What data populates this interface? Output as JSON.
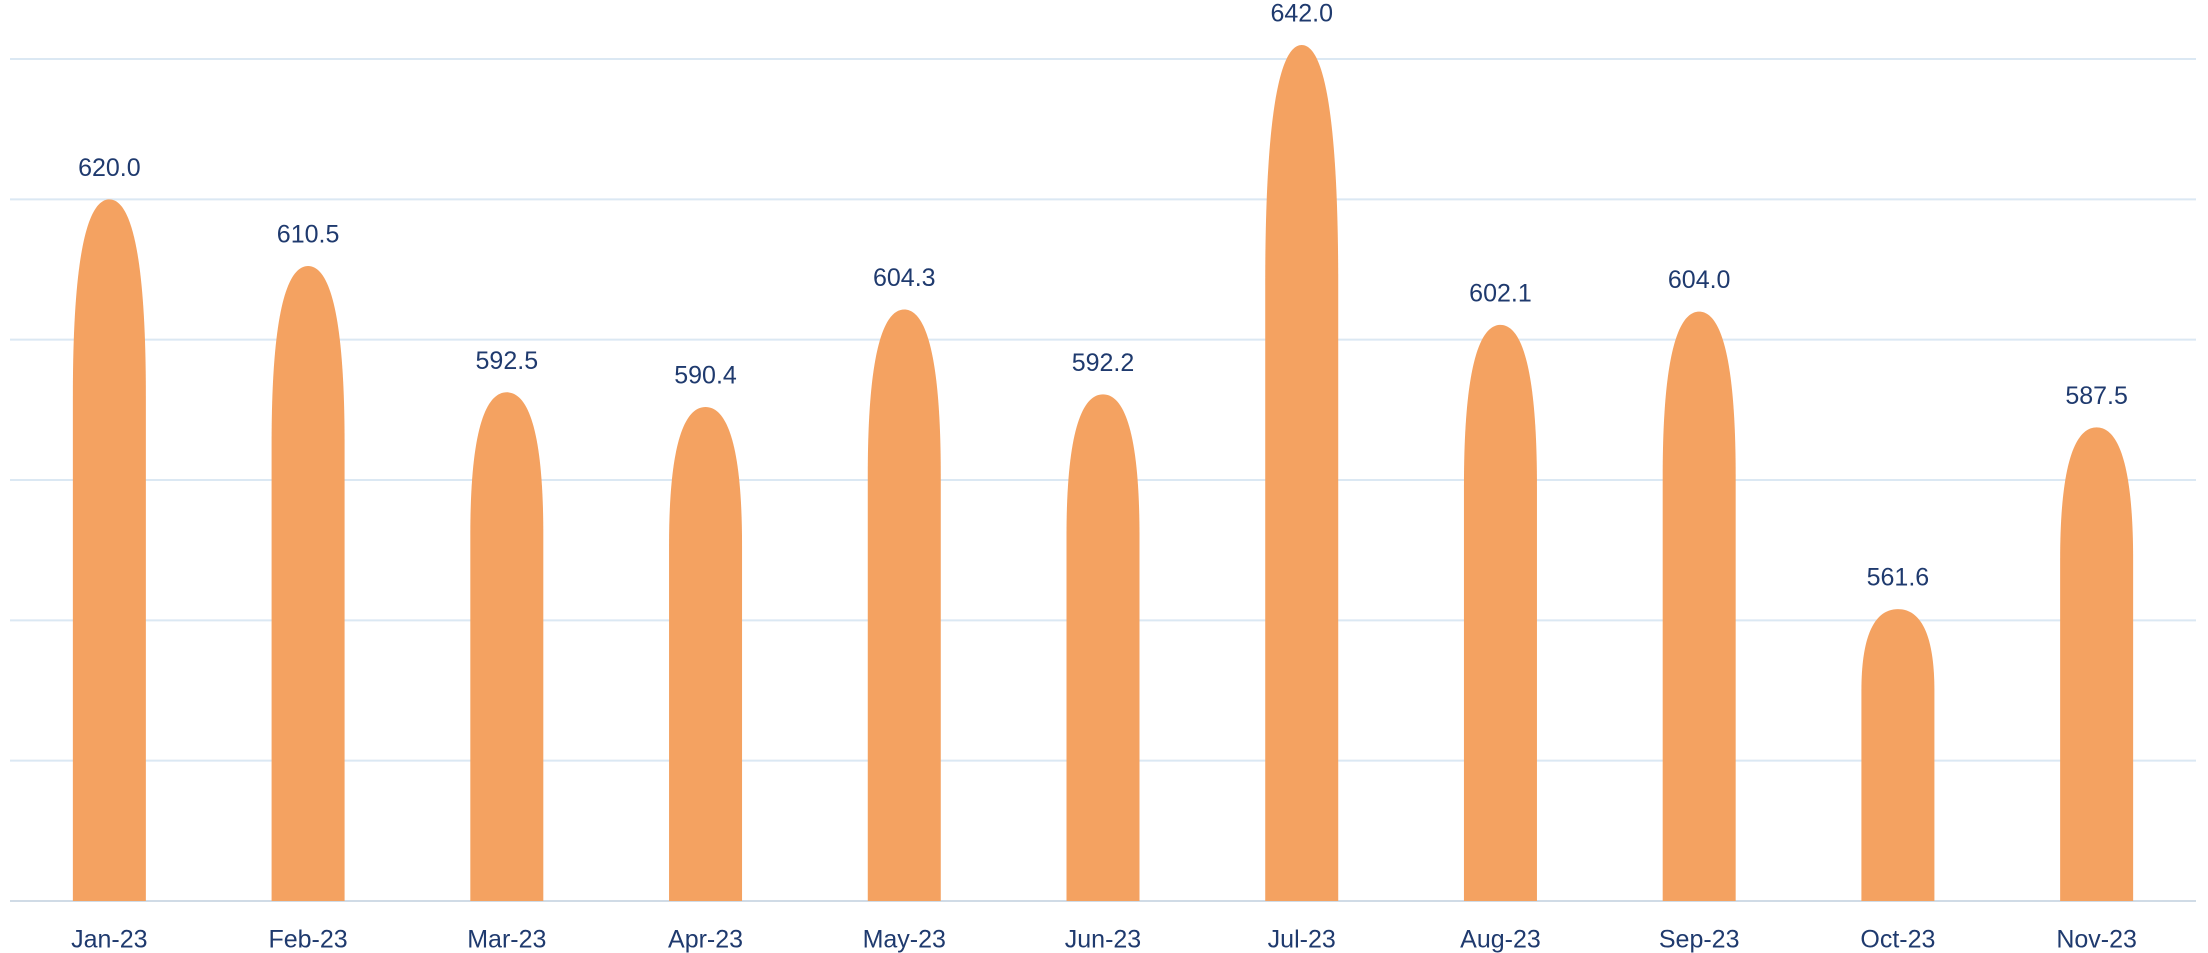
{
  "chart_data": {
    "type": "bar",
    "categories": [
      "Jan-23",
      "Feb-23",
      "Mar-23",
      "Apr-23",
      "May-23",
      "Jun-23",
      "Jul-23",
      "Aug-23",
      "Sep-23",
      "Oct-23",
      "Nov-23"
    ],
    "values": [
      620.0,
      610.5,
      592.5,
      590.4,
      604.3,
      592.2,
      642.0,
      602.1,
      604.0,
      561.6,
      587.5
    ],
    "value_labels": [
      "620.0",
      "610.5",
      "592.5",
      "590.4",
      "604.3",
      "592.2",
      "642.0",
      "602.1",
      "604.0",
      "561.6",
      "587.5"
    ],
    "color": "#f4a261",
    "ylim": [
      520,
      640
    ],
    "yticks": [
      520,
      540,
      560,
      580,
      600,
      620,
      640
    ],
    "grid": true
  }
}
